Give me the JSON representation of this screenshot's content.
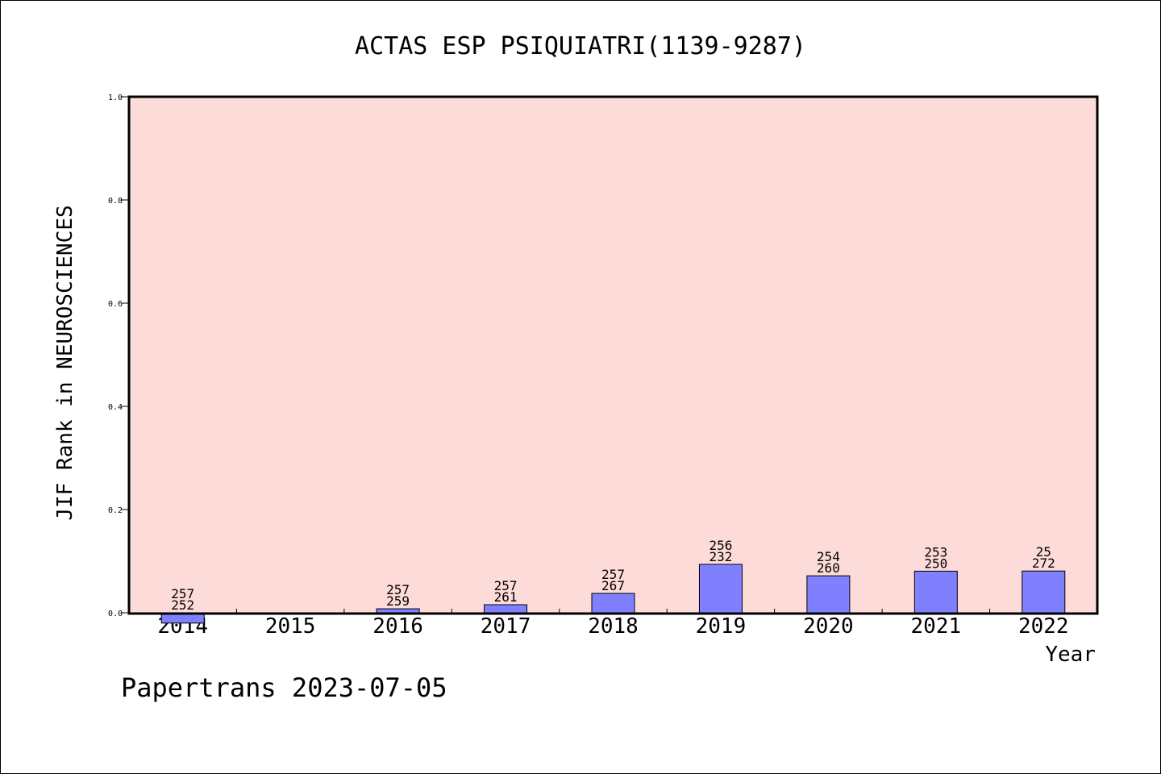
{
  "chart_data": {
    "type": "bar",
    "title": "ACTAS ESP PSIQUIATRI(1139-9287)",
    "xlabel": "Year",
    "ylabel": "JIF Rank in NEUROSCIENCES",
    "ylim": [
      0,
      1.0
    ],
    "yticks": [
      "0.0",
      "0.2",
      "0.4",
      "0.6",
      "0.8",
      "1.0"
    ],
    "categories": [
      "2014",
      "2015",
      "2016",
      "2017",
      "2018",
      "2019",
      "2020",
      "2021",
      "2022"
    ],
    "values": [
      -0.02,
      null,
      0.0077,
      0.0156,
      0.0375,
      0.0938,
      0.0716,
      0.0806,
      0.0809
    ],
    "labels_top": [
      "257",
      "",
      "257",
      "257",
      "257",
      "256",
      "254",
      "253",
      "25"
    ],
    "labels_bottom": [
      "252",
      "",
      "259",
      "261",
      "267",
      "232",
      "260",
      "250",
      "272"
    ],
    "grid": false,
    "colors": {
      "plot_background": "#fddbd8",
      "bar_fill": "#8080ff",
      "bar_stroke": "#000000"
    }
  },
  "footer": {
    "credit": "Papertrans 2023-07-05"
  }
}
